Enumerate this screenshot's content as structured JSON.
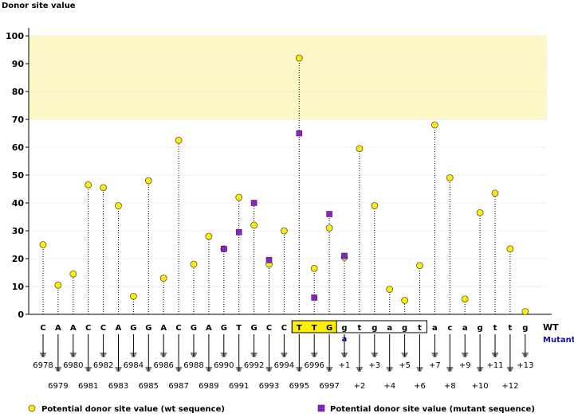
{
  "chart_data": {
    "type": "scatter",
    "title": "Donor site value",
    "ylabel": "Donor site value",
    "ylim": [
      0,
      100
    ],
    "yticks": [
      0,
      10,
      20,
      30,
      40,
      50,
      60,
      70,
      80,
      90,
      100
    ],
    "highlight_band": {
      "from": 70,
      "to": 100,
      "color": "#fdf6c6"
    },
    "row_labels": {
      "wt": "WT",
      "mutant": "Mutant"
    },
    "wt_sequence": [
      "C",
      "A",
      "A",
      "C",
      "C",
      "A",
      "G",
      "G",
      "A",
      "C",
      "G",
      "A",
      "G",
      "T",
      "G",
      "C",
      "C",
      "T",
      "T",
      "G",
      "g",
      "t",
      "g",
      "a",
      "g",
      "t",
      "a",
      "c",
      "a",
      "g",
      "t",
      "t",
      "g"
    ],
    "mutant_sequence": [
      "",
      "",
      "",
      "",
      "",
      "",
      "",
      "",
      "",
      "",
      "",
      "",
      "",
      "",
      "",
      "",
      "",
      "",
      "",
      "",
      "a",
      "",
      "",
      "",
      "",
      "",
      "",
      "",
      "",
      "",
      "",
      "",
      ""
    ],
    "boxed_range": [
      17,
      25
    ],
    "highlighted_exon_range": [
      17,
      19
    ],
    "positions": [
      "6978",
      "6979",
      "6980",
      "6981",
      "6982",
      "6983",
      "6984",
      "6985",
      "6986",
      "6987",
      "6988",
      "6989",
      "6990",
      "6991",
      "6992",
      "6993",
      "6994",
      "6995",
      "6996",
      "6997",
      "+1",
      "+2",
      "+3",
      "+4",
      "+5",
      "+6",
      "+7",
      "+8",
      "+9",
      "+10",
      "+11",
      "+12",
      "+13"
    ],
    "series": [
      {
        "name": "Potential donor site value (wt sequence)",
        "color": "#ffee00",
        "marker": "circle",
        "values": [
          25,
          10.5,
          14.5,
          46.5,
          45.5,
          39,
          6.5,
          48,
          13,
          62.5,
          18,
          28,
          23.5,
          42,
          32,
          18,
          30,
          92,
          16.5,
          31,
          20.5,
          59.5,
          39,
          9,
          5,
          17.5,
          68,
          49,
          5.5,
          36.5,
          43.5,
          23.5,
          1
        ]
      },
      {
        "name": "Potential donor site value (mutant sequence)",
        "color": "#8e1fd0",
        "marker": "square",
        "values": [
          null,
          null,
          null,
          null,
          null,
          null,
          null,
          null,
          null,
          null,
          null,
          null,
          23.5,
          29.5,
          40,
          19.5,
          null,
          65,
          6,
          36,
          21,
          null,
          null,
          null,
          null,
          null,
          null,
          null,
          null,
          null,
          null,
          null,
          null
        ]
      }
    ]
  }
}
